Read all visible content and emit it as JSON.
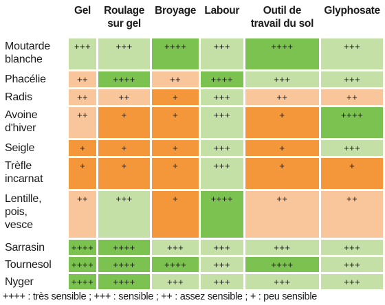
{
  "columns": [
    "Gel",
    "Roulage\nsur gel",
    "Broyage",
    "Labour",
    "Outil de\ntravail du sol",
    "Glyphosate"
  ],
  "rows": [
    {
      "label": "Moutarde\nblanche",
      "values": [
        "+++",
        "+++",
        "++++",
        "+++",
        "++++",
        "+++"
      ]
    },
    {
      "label": "Phacélie",
      "values": [
        "++",
        "++++",
        "++",
        "++++",
        "+++",
        "+++"
      ]
    },
    {
      "label": "Radis",
      "values": [
        "++",
        "++",
        "+",
        "+++",
        "++",
        "++"
      ]
    },
    {
      "label": "Avoine\nd'hiver",
      "values": [
        "++",
        "+",
        "+",
        "+++",
        "+",
        "++++"
      ]
    },
    {
      "label": "Seigle",
      "values": [
        "+",
        "+",
        "+",
        "+++",
        "+",
        "+++"
      ]
    },
    {
      "label": "Trèfle\nincarnat",
      "values": [
        "+",
        "+",
        "+",
        "+++",
        "+",
        "+"
      ]
    },
    {
      "label": "Lentille,\npois,\nvesce",
      "values": [
        "++",
        "+++",
        "+",
        "++++",
        "++",
        "++"
      ]
    },
    {
      "label": "Sarrasin",
      "values": [
        "++++",
        "++++",
        "+++",
        "+++",
        "+++",
        "+++"
      ]
    },
    {
      "label": "Tournesol",
      "values": [
        "++++",
        "++++",
        "++++",
        "+++",
        "++++",
        "+++"
      ]
    },
    {
      "label": "Nyger",
      "values": [
        "++++",
        "++++",
        "+++",
        "+++",
        "+++",
        "+++"
      ]
    }
  ],
  "legend": "++++ : très sensible ; +++ : sensible ; ++ : assez sensible ; + : peu sensible",
  "level_colors": {
    "++++": "#7cc251",
    "+++": "#c4e0a6",
    "++": "#f9c59b",
    "+": "#f4973a"
  }
}
